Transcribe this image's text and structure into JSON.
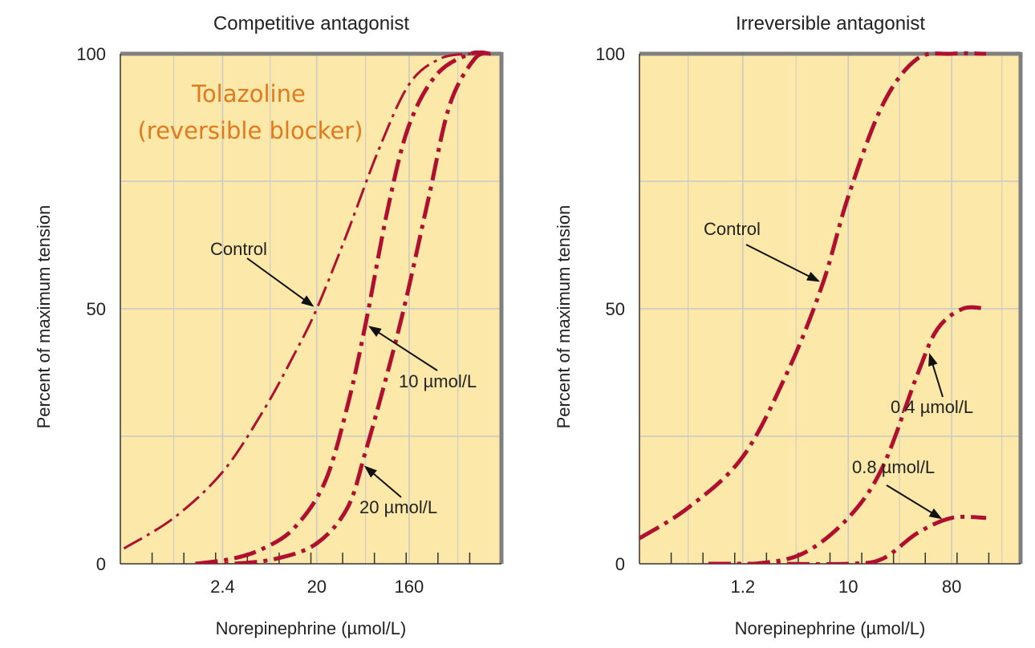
{
  "colors": {
    "plot_bg": "#fce8a8",
    "grid": "#c8c8c8",
    "curve": "#b0102f",
    "frame": "#7f7f7f",
    "overlay_text": "#e07a1f"
  },
  "overlay_note": {
    "line1": "Tolazoline",
    "line2": "(reversible blocker)"
  },
  "chart_data": [
    {
      "type": "line",
      "title": "Competitive antagonist",
      "xlabel": "Norepinephrine (µmol/L)",
      "ylabel": "Percent of maximum tension",
      "x_scale": "log",
      "xlim": [
        0.24,
        1280
      ],
      "ylim": [
        0,
        100
      ],
      "x_ticks": [
        2.4,
        20,
        160
      ],
      "x_tick_labels": [
        "2.4",
        "20",
        "160"
      ],
      "y_ticks": [
        0,
        50,
        100
      ],
      "y_tick_labels": [
        "0",
        "50",
        "100"
      ],
      "grid": true,
      "series": [
        {
          "name": "Control",
          "style": "dash-dot-thin",
          "x": [
            0.26,
            0.8,
            2.4,
            6,
            12,
            20,
            40,
            80,
            160,
            320,
            640,
            1000
          ],
          "y": [
            3,
            9,
            18,
            30,
            41,
            50,
            65,
            81,
            94,
            99,
            100,
            100
          ]
        },
        {
          "name": "10 µmol/L",
          "style": "dash-dot-thick",
          "x": [
            1.3,
            3,
            6,
            12,
            24,
            40,
            60,
            100,
            160,
            300,
            640,
            1000
          ],
          "y": [
            0,
            1,
            3,
            7,
            16,
            31,
            47,
            70,
            86,
            96,
            100,
            100
          ]
        },
        {
          "name": "20 µmol/L",
          "style": "dash-dot-thick",
          "x": [
            1.3,
            3,
            8,
            20,
            40,
            60,
            100,
            150,
            250,
            400,
            700,
            1000
          ],
          "y": [
            0,
            0,
            1,
            4,
            11,
            22,
            38,
            52,
            72,
            90,
            99,
            100
          ]
        }
      ],
      "annotations": [
        {
          "text": "Control",
          "target_series": "Control",
          "at_x": 20
        },
        {
          "text": "10 µmol/L",
          "target_series": "10 µmol/L",
          "at_x": 60
        },
        {
          "text": "20 µmol/L",
          "target_series": "20 µmol/L",
          "at_x": 55
        }
      ]
    },
    {
      "type": "line",
      "title": "Irreversible antagonist",
      "xlabel": "Norepinephrine (µmol/L)",
      "ylabel": "Percent of maximum tension",
      "x_scale": "log",
      "xlim": [
        0.15,
        320
      ],
      "ylim": [
        0,
        100
      ],
      "x_ticks": [
        1.2,
        10,
        80
      ],
      "x_tick_labels": [
        "1.2",
        "10",
        "80"
      ],
      "y_ticks": [
        0,
        50,
        100
      ],
      "y_tick_labels": [
        "0",
        "50",
        "100"
      ],
      "grid": true,
      "series": [
        {
          "name": "Control",
          "style": "dash-dot-thick",
          "x": [
            0.15,
            0.4,
            1.2,
            3,
            6,
            10,
            20,
            40,
            80,
            160
          ],
          "y": [
            5,
            11,
            21,
            38,
            55,
            72,
            90,
            99,
            100,
            100
          ]
        },
        {
          "name": "0.4 µmol/L",
          "style": "dash-dot-thick",
          "x": [
            0.6,
            1.5,
            4,
            10,
            20,
            40,
            60,
            100,
            160
          ],
          "y": [
            0,
            0,
            2,
            9,
            19,
            37,
            46,
            50,
            50
          ]
        },
        {
          "name": "0.8 µmol/L",
          "style": "dash-dot-thick",
          "x": [
            0.6,
            2,
            10,
            20,
            40,
            80,
            160
          ],
          "y": [
            0,
            0,
            0,
            1,
            6,
            9,
            9
          ]
        }
      ],
      "annotations": [
        {
          "text": "Control",
          "target_series": "Control",
          "at_x": 6
        },
        {
          "text": "0.4 µmol/L",
          "target_series": "0.4 µmol/L",
          "at_x": 50
        },
        {
          "text": "0.8 µmol/L",
          "target_series": "0.8 µmol/L",
          "at_x": 70
        }
      ]
    }
  ]
}
